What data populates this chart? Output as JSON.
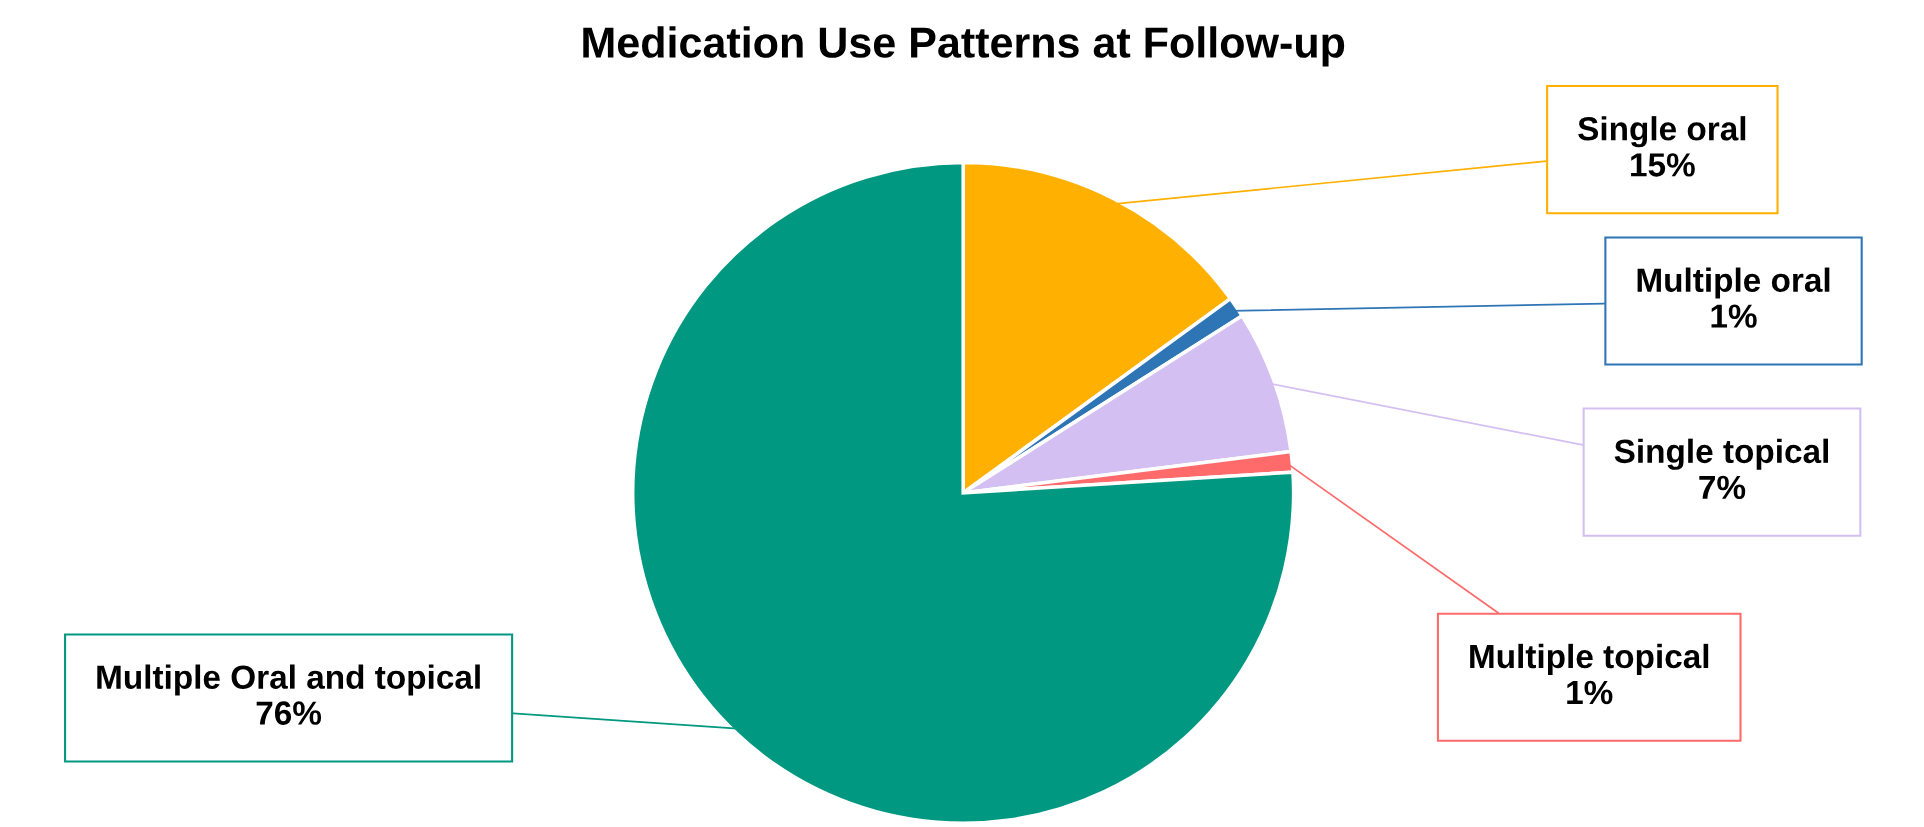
{
  "chart_data": {
    "type": "pie",
    "title": "Medication Use Patterns at Follow-up",
    "categories": [
      "Single oral",
      "Multiple oral",
      "Single topical",
      "Multiple topical",
      "Multiple Oral and topical"
    ],
    "values": [
      15,
      1,
      7,
      1,
      76
    ],
    "value_labels": [
      "15%",
      "1%",
      "7%",
      "1%",
      "76%"
    ],
    "colors": [
      "#ffb000",
      "#2e75b6",
      "#d4bff2",
      "#ff6b6b",
      "#009880"
    ],
    "legend": false
  }
}
